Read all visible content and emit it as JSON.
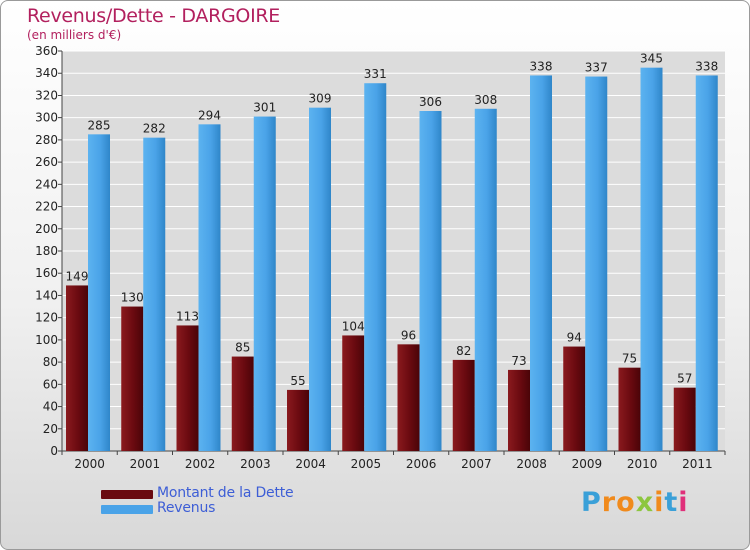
{
  "header": {
    "title": "Revenus/Dette - DARGOIRE",
    "subtitle": "(en milliers d'€)"
  },
  "colors": {
    "debt": "#6a0a10",
    "revenue": "#4aa3e8",
    "title": "#b2205e",
    "legend_text": "#3d5ed6"
  },
  "chart_data": {
    "type": "bar",
    "title": "Revenus/Dette - DARGOIRE",
    "subtitle": "(en milliers d'€)",
    "categories": [
      "2000",
      "2001",
      "2002",
      "2003",
      "2004",
      "2005",
      "2006",
      "2007",
      "2008",
      "2009",
      "2010",
      "2011"
    ],
    "series": [
      {
        "name": "Montant de la Dette",
        "values": [
          149,
          130,
          113,
          85,
          55,
          104,
          96,
          82,
          73,
          94,
          75,
          57
        ]
      },
      {
        "name": "Revenus",
        "values": [
          285,
          282,
          294,
          301,
          309,
          331,
          306,
          308,
          338,
          337,
          345,
          338
        ]
      }
    ],
    "ylim": [
      0,
      360
    ],
    "yticks": [
      0,
      20,
      40,
      60,
      80,
      100,
      120,
      140,
      160,
      180,
      200,
      220,
      240,
      260,
      280,
      300,
      320,
      340,
      360
    ],
    "grid": true,
    "legend_position": "bottom-left"
  },
  "legend": {
    "items": [
      {
        "label": "Montant de la Dette",
        "color": "#6a0a10"
      },
      {
        "label": "Revenus",
        "color": "#4aa3e8"
      }
    ]
  },
  "logo": {
    "text": "Proxiti",
    "letters": [
      "P",
      "r",
      "o",
      "x",
      "i",
      "t",
      "i"
    ],
    "letter_colors": [
      "#3aa0d8",
      "#f08a1c",
      "#f08a1c",
      "#8dc63f",
      "#f08a1c",
      "#3aa0d8",
      "#e0307a"
    ]
  }
}
